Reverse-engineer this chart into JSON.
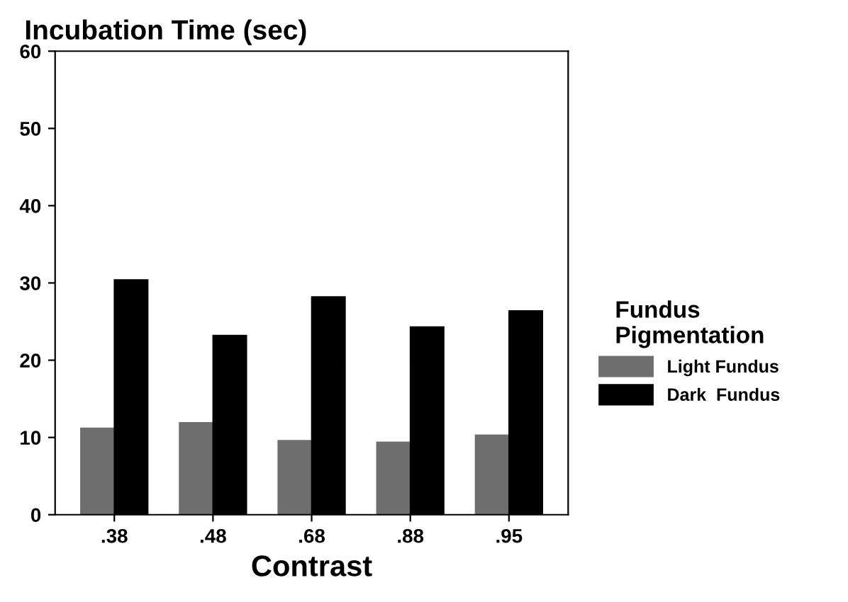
{
  "chart_data": {
    "type": "bar",
    "title": "Incubation Time (sec)",
    "xlabel": "Contrast",
    "legend_title": "Fundus\nPigmentation",
    "categories": [
      ".38",
      ".48",
      ".68",
      ".88",
      ".95"
    ],
    "series": [
      {
        "name": "Light Fundus",
        "color": "#6e6e6e",
        "values": [
          11.2,
          11.9,
          9.6,
          9.4,
          10.3
        ]
      },
      {
        "name": "Dark  Fundus",
        "color": "#000000",
        "values": [
          30.4,
          23.2,
          28.2,
          24.3,
          26.4
        ]
      }
    ],
    "ylim": [
      0,
      60
    ],
    "yticks": [
      0,
      10,
      20,
      30,
      40,
      50,
      60
    ],
    "grid": false,
    "legend": "right"
  }
}
